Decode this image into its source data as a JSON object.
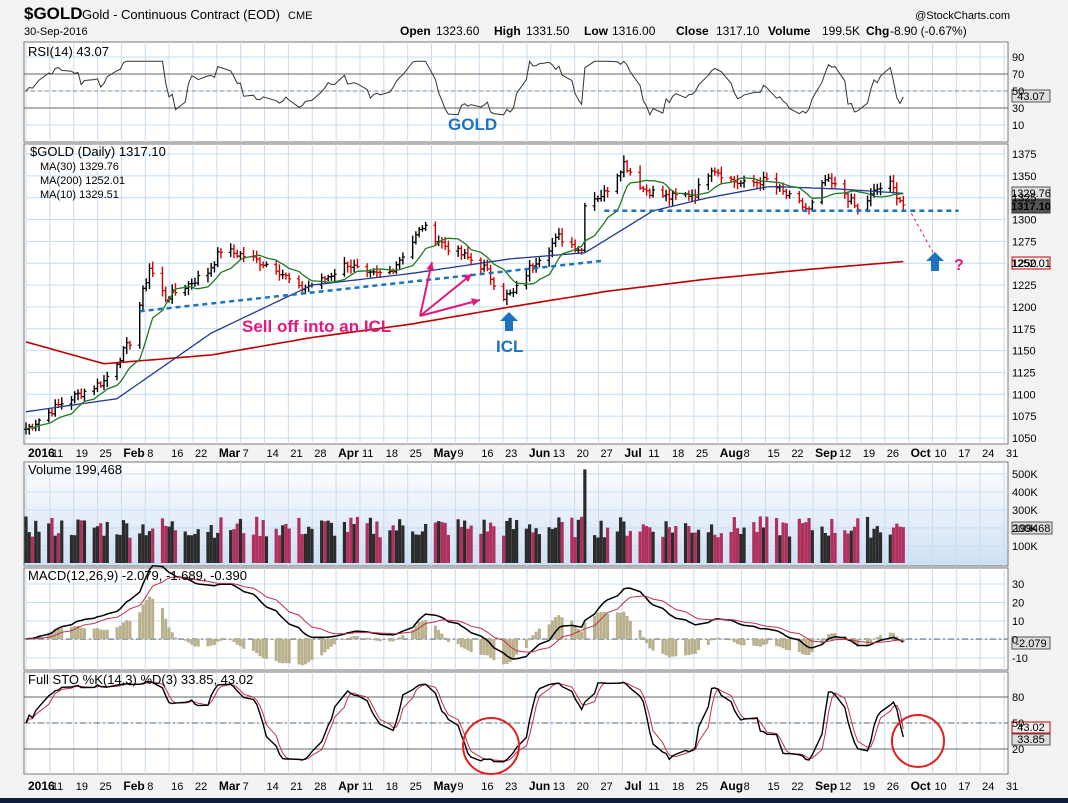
{
  "header": {
    "symbol": "$GOLD",
    "description": "Gold - Continuous Contract (EOD)",
    "exchange": "CME",
    "date": "30-Sep-2016",
    "brand": "@StockCharts.com",
    "quote": {
      "open_label": "Open",
      "open": "1323.60",
      "high_label": "High",
      "high": "1331.50",
      "low_label": "Low",
      "low": "1316.00",
      "close_label": "Close",
      "close": "1317.10",
      "volume_label": "Volume",
      "volume": "199.5K",
      "chg_label": "Chg",
      "chg": "-8.90 (-0.67%)"
    }
  },
  "rsi_panel": {
    "legend": "RSI(14) 43.07",
    "value_badge": "43.07",
    "levels": [
      "90",
      "70",
      "50",
      "30",
      "10"
    ]
  },
  "price_panel": {
    "legend_title": "$GOLD (Daily) 1317.10",
    "ma30": "MA(30) 1329.76",
    "ma200": "MA(200) 1252.01",
    "ma10": "MA(10) 1329.51",
    "badges": [
      "1329.76",
      "1317.10",
      "1252.01"
    ],
    "y_ticks": [
      "1375",
      "1350",
      "1325",
      "1300",
      "1275",
      "1250",
      "1225",
      "1200",
      "1175",
      "1150",
      "1125",
      "1100",
      "1075",
      "1050"
    ],
    "annotations": {
      "gold": "GOLD",
      "selloff": "Sell off into an ICL",
      "icl": "ICL",
      "question": "?"
    }
  },
  "volume_panel": {
    "legend": "Volume 199,468",
    "value_badge": "199468",
    "y_ticks": [
      "500K",
      "400K",
      "300K",
      "200K",
      "100K"
    ]
  },
  "macd_panel": {
    "legend": "MACD(12,26,9) -2.079, -1.689, -0.390",
    "value_badge": "-2.079",
    "y_ticks": [
      "30",
      "20",
      "10",
      "0",
      "-10"
    ]
  },
  "sto_panel": {
    "legend": "Full STO %K(14,3) %D(3) 33.85, 43.02",
    "value_badges": [
      "43.02",
      "33.85"
    ],
    "y_ticks": [
      "80",
      "50",
      "20"
    ]
  },
  "x_axis": {
    "labels": [
      {
        "t": "2016",
        "b": 1
      },
      {
        "t": "11"
      },
      {
        "t": "19"
      },
      {
        "t": "25"
      },
      {
        "t": "Feb",
        "b": 1
      },
      {
        "t": "8"
      },
      {
        "t": "16"
      },
      {
        "t": "22"
      },
      {
        "t": "Mar",
        "b": 1
      },
      {
        "t": "7"
      },
      {
        "t": "14"
      },
      {
        "t": "21"
      },
      {
        "t": "28"
      },
      {
        "t": "Apr",
        "b": 1
      },
      {
        "t": "11"
      },
      {
        "t": "18"
      },
      {
        "t": "25"
      },
      {
        "t": "May",
        "b": 1
      },
      {
        "t": "9"
      },
      {
        "t": "16"
      },
      {
        "t": "23"
      },
      {
        "t": "Jun",
        "b": 1
      },
      {
        "t": "13"
      },
      {
        "t": "20"
      },
      {
        "t": "27"
      },
      {
        "t": "Jul",
        "b": 1
      },
      {
        "t": "11"
      },
      {
        "t": "18"
      },
      {
        "t": "25"
      },
      {
        "t": "Aug",
        "b": 1
      },
      {
        "t": "8"
      },
      {
        "t": "15"
      },
      {
        "t": "22"
      },
      {
        "t": "Sep",
        "b": 1
      },
      {
        "t": "12"
      },
      {
        "t": "19"
      },
      {
        "t": "26"
      },
      {
        "t": "Oct",
        "b": 1
      },
      {
        "t": "10"
      },
      {
        "t": "17"
      },
      {
        "t": "24"
      },
      {
        "t": "31"
      }
    ]
  },
  "chart_data": {
    "type": "line",
    "title": "$GOLD Gold - Continuous Contract (EOD) CME",
    "x_range": [
      "2016-01-04",
      "2016-10-31"
    ],
    "ylim": [
      1045,
      1385
    ],
    "price_anchors": [
      [
        "2016-01-04",
        1060
      ],
      [
        "2016-01-15",
        1090
      ],
      [
        "2016-01-28",
        1115
      ],
      [
        "2016-02-05",
        1160
      ],
      [
        "2016-02-11",
        1245
      ],
      [
        "2016-02-16",
        1210
      ],
      [
        "2016-02-29",
        1240
      ],
      [
        "2016-03-04",
        1265
      ],
      [
        "2016-03-10",
        1260
      ],
      [
        "2016-03-21",
        1245
      ],
      [
        "2016-03-28",
        1220
      ],
      [
        "2016-04-04",
        1230
      ],
      [
        "2016-04-12",
        1250
      ],
      [
        "2016-04-18",
        1235
      ],
      [
        "2016-04-25",
        1240
      ],
      [
        "2016-05-02",
        1275
      ],
      [
        "2016-05-05",
        1292
      ],
      [
        "2016-05-12",
        1270
      ],
      [
        "2016-05-18",
        1258
      ],
      [
        "2016-05-24",
        1245
      ],
      [
        "2016-05-30",
        1212
      ],
      [
        "2016-06-02",
        1215
      ],
      [
        "2016-06-08",
        1250
      ],
      [
        "2016-06-16",
        1280
      ],
      [
        "2016-06-23",
        1265
      ],
      [
        "2016-06-24",
        1320
      ],
      [
        "2016-06-30",
        1330
      ],
      [
        "2016-07-06",
        1365
      ],
      [
        "2016-07-12",
        1335
      ],
      [
        "2016-07-20",
        1325
      ],
      [
        "2016-07-28",
        1330
      ],
      [
        "2016-08-02",
        1360
      ],
      [
        "2016-08-08",
        1345
      ],
      [
        "2016-08-12",
        1340
      ],
      [
        "2016-08-19",
        1345
      ],
      [
        "2016-08-26",
        1325
      ],
      [
        "2016-09-01",
        1310
      ],
      [
        "2016-09-06",
        1345
      ],
      [
        "2016-09-12",
        1330
      ],
      [
        "2016-09-16",
        1310
      ],
      [
        "2016-09-22",
        1335
      ],
      [
        "2016-09-26",
        1340
      ],
      [
        "2016-09-30",
        1317
      ]
    ],
    "ma200_anchors": [
      [
        "2016-01-04",
        1160
      ],
      [
        "2016-01-28",
        1135
      ],
      [
        "2016-03-01",
        1145
      ],
      [
        "2016-04-01",
        1165
      ],
      [
        "2016-05-01",
        1180
      ],
      [
        "2016-06-01",
        1200
      ],
      [
        "2016-07-01",
        1218
      ],
      [
        "2016-08-01",
        1232
      ],
      [
        "2016-09-01",
        1243
      ],
      [
        "2016-09-30",
        1252
      ]
    ],
    "ma30_anchors": [
      [
        "2016-01-04",
        1080
      ],
      [
        "2016-02-01",
        1095
      ],
      [
        "2016-03-01",
        1170
      ],
      [
        "2016-04-01",
        1225
      ],
      [
        "2016-05-01",
        1238
      ],
      [
        "2016-06-01",
        1255
      ],
      [
        "2016-06-24",
        1262
      ],
      [
        "2016-07-15",
        1310
      ],
      [
        "2016-08-01",
        1325
      ],
      [
        "2016-08-20",
        1338
      ],
      [
        "2016-09-10",
        1335
      ],
      [
        "2016-09-30",
        1330
      ]
    ],
    "trendlines": [
      {
        "name": "rising support",
        "from": [
          "2016-02-08",
          1195
        ],
        "to": [
          "2016-06-30",
          1253
        ]
      },
      {
        "name": "horizontal support",
        "from": [
          "2016-06-30",
          1310
        ],
        "to": [
          "2016-10-17",
          1310
        ]
      }
    ],
    "rsi_last": 43.07,
    "volume_last": 199468,
    "macd_last": [
      -2.079,
      -1.689,
      -0.39
    ],
    "sto_last": [
      33.85,
      43.02
    ]
  }
}
